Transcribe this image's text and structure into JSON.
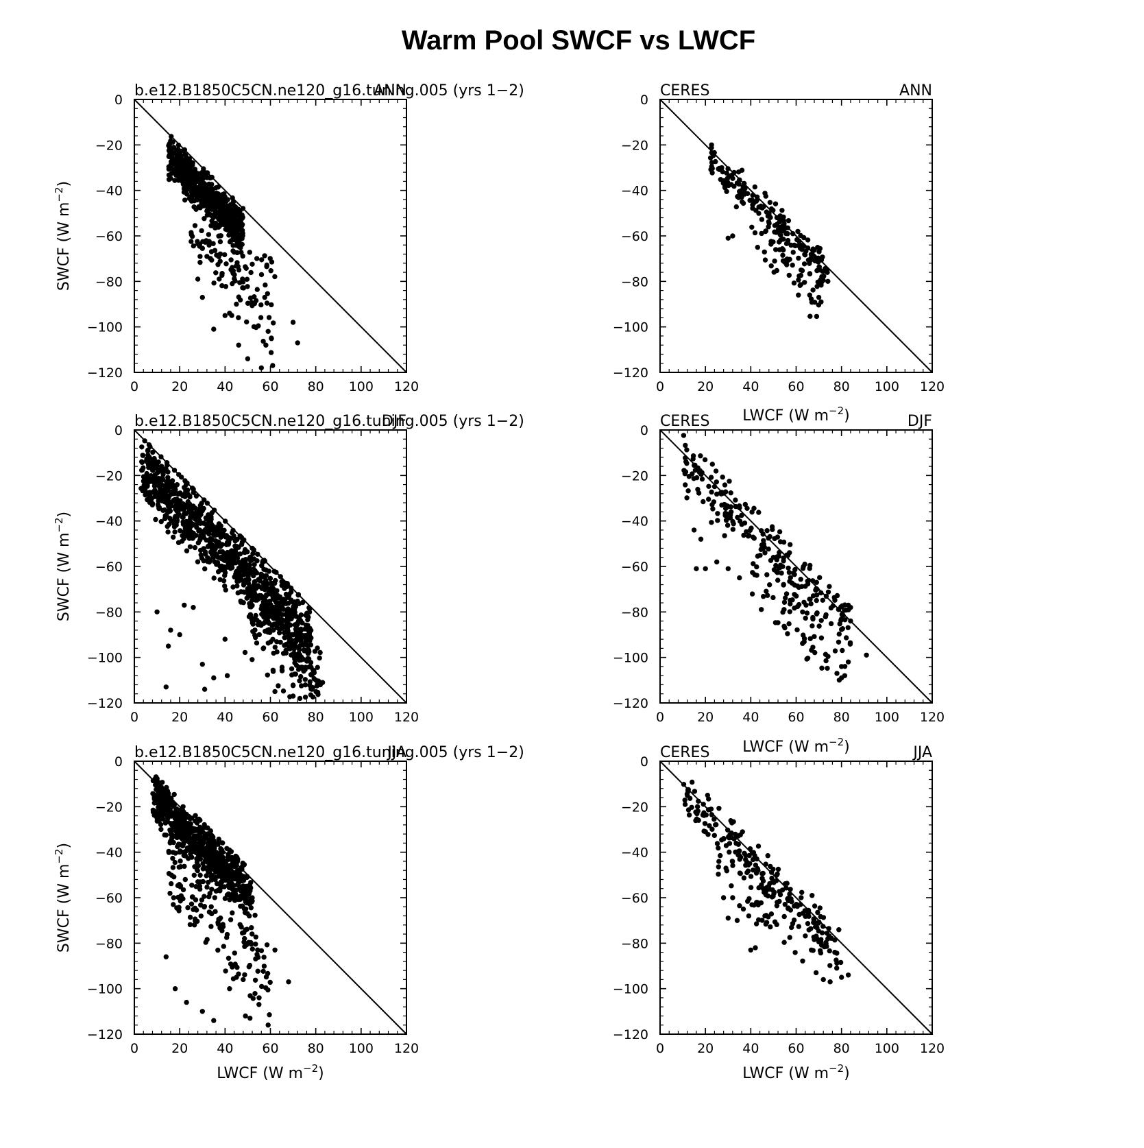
{
  "chart_data": {
    "title": "Warm Pool SWCF vs LWCF",
    "type": "scatter",
    "xlim": [
      0,
      120
    ],
    "ylim": [
      -120,
      0
    ],
    "xticks": [
      0,
      20,
      40,
      60,
      80,
      100,
      120
    ],
    "yticks": [
      0,
      -20,
      -40,
      -60,
      -80,
      -100,
      -120
    ],
    "xlabel": "LWCF (W m",
    "ylabel": "SWCF (W m",
    "unit_superscript": "−2",
    "reference_line": "y = -x",
    "grid": false,
    "panels": [
      {
        "id": "model-ann",
        "left_label": "b.e12.B1850C5CN.ne120_g16.tuning.005 (yrs 1−2)",
        "right_label": "ANN",
        "clusters": [
          {
            "n": 600,
            "x": [
              15,
              48
            ],
            "off": [
              -18,
              -2
            ]
          },
          {
            "n": 130,
            "x": [
              25,
              62
            ],
            "off": [
              -48,
              -12
            ]
          }
        ],
        "points": [
          [
            28,
            -79
          ],
          [
            30,
            -87
          ],
          [
            70,
            -98
          ],
          [
            72,
            -107
          ],
          [
            50,
            -114
          ],
          [
            56,
            -118
          ],
          [
            61,
            -117
          ],
          [
            46,
            -108
          ],
          [
            35,
            -101
          ],
          [
            58,
            -108
          ],
          [
            59,
            -102
          ],
          [
            29,
            -69
          ],
          [
            32,
            -69
          ],
          [
            40,
            -95
          ],
          [
            45,
            -90
          ]
        ]
      },
      {
        "id": "obs-ann",
        "left_label": "CERES",
        "right_label": "ANN",
        "clusters": [
          {
            "n": 190,
            "x": [
              22,
              74
            ],
            "off": [
              -10,
              3
            ]
          },
          {
            "n": 45,
            "x": [
              40,
              70
            ],
            "off": [
              -26,
              -8
            ]
          }
        ],
        "points": [
          [
            30,
            -61
          ],
          [
            32,
            -60
          ],
          [
            51,
            -66
          ],
          [
            43,
            -65
          ],
          [
            61,
            -86
          ],
          [
            66,
            -86
          ],
          [
            70,
            -87
          ],
          [
            71,
            -89
          ],
          [
            74,
            -80
          ]
        ]
      },
      {
        "id": "model-djf",
        "left_label": "b.e12.B1850C5CN.ne120_g16.tuning.005 (yrs 1−2)",
        "right_label": "DJF",
        "clusters": [
          {
            "n": 950,
            "x": [
              3,
              78
            ],
            "off": [
              -26,
              -2
            ]
          },
          {
            "n": 160,
            "x": [
              45,
              82
            ],
            "off": [
              -45,
              -12
            ]
          }
        ],
        "points": [
          [
            6,
            -11
          ],
          [
            9,
            -16
          ],
          [
            14,
            -113
          ],
          [
            15,
            -95
          ],
          [
            16,
            -88
          ],
          [
            20,
            -90
          ],
          [
            22,
            -77
          ],
          [
            30,
            -103
          ],
          [
            31,
            -114
          ],
          [
            35,
            -109
          ],
          [
            41,
            -108
          ],
          [
            40,
            -92
          ],
          [
            62,
            -115
          ],
          [
            70,
            -117
          ],
          [
            73,
            -118
          ],
          [
            80,
            -110
          ],
          [
            82,
            -112
          ],
          [
            83,
            -111
          ],
          [
            10,
            -80
          ],
          [
            26,
            -78
          ]
        ]
      },
      {
        "id": "obs-djf",
        "left_label": "CERES",
        "right_label": "DJF",
        "title_center": "LWCF (W m",
        "clusters": [
          {
            "n": 220,
            "x": [
              10,
              84
            ],
            "off": [
              -14,
              6
            ]
          },
          {
            "n": 65,
            "x": [
              40,
              82
            ],
            "off": [
              -32,
              -8
            ]
          }
        ],
        "points": [
          [
            16,
            -61
          ],
          [
            20,
            -61
          ],
          [
            25,
            -58
          ],
          [
            30,
            -61
          ],
          [
            35,
            -65
          ],
          [
            15,
            -44
          ],
          [
            18,
            -48
          ],
          [
            55,
            -87
          ],
          [
            79,
            -110
          ],
          [
            80,
            -109
          ],
          [
            83,
            -102
          ],
          [
            91,
            -99
          ],
          [
            80,
            -104
          ],
          [
            78,
            -107
          ],
          [
            84,
            -78
          ],
          [
            83,
            -77
          ],
          [
            69,
            -67
          ]
        ]
      },
      {
        "id": "model-jja",
        "left_label": "b.e12.B1850C5CN.ne120_g16.tuning.005 (yrs 1−2)",
        "right_label": "JJA",
        "clusters": [
          {
            "n": 700,
            "x": [
              8,
              52
            ],
            "off": [
              -16,
              1
            ]
          },
          {
            "n": 170,
            "x": [
              15,
              60
            ],
            "off": [
              -48,
              -12
            ]
          }
        ],
        "points": [
          [
            13,
            -14
          ],
          [
            14,
            -15
          ],
          [
            9,
            -22
          ],
          [
            10,
            -25
          ],
          [
            14,
            -86
          ],
          [
            18,
            -100
          ],
          [
            23,
            -106
          ],
          [
            30,
            -110
          ],
          [
            35,
            -114
          ],
          [
            49,
            -112
          ],
          [
            51,
            -113
          ],
          [
            59,
            -116
          ],
          [
            62,
            -83
          ],
          [
            68,
            -97
          ],
          [
            55,
            -104
          ],
          [
            42,
            -100
          ],
          [
            45,
            -95
          ]
        ]
      },
      {
        "id": "obs-jja",
        "left_label": "CERES",
        "right_label": "JJA",
        "title_center": "LWCF (W m",
        "clusters": [
          {
            "n": 210,
            "x": [
              10,
              80
            ],
            "off": [
              -12,
              4
            ]
          },
          {
            "n": 55,
            "x": [
              25,
              70
            ],
            "off": [
              -30,
              -10
            ]
          }
        ],
        "points": [
          [
            17,
            -26
          ],
          [
            20,
            -31
          ],
          [
            28,
            -60
          ],
          [
            30,
            -69
          ],
          [
            40,
            -83
          ],
          [
            42,
            -82
          ],
          [
            72,
            -96
          ],
          [
            75,
            -97
          ],
          [
            80,
            -95
          ],
          [
            83,
            -94
          ],
          [
            67,
            -59
          ],
          [
            34,
            -70
          ],
          [
            32,
            -60
          ]
        ]
      }
    ]
  }
}
